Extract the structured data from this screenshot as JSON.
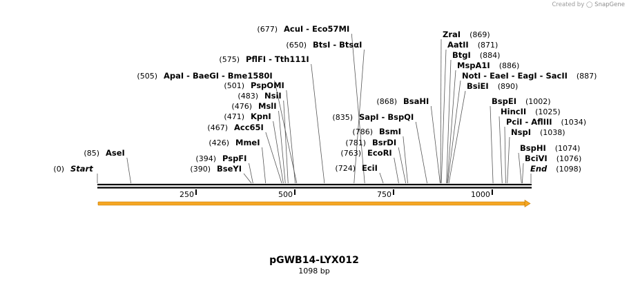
{
  "credit": {
    "prefix": "Created by",
    "brand": "SnapGene"
  },
  "plasmid": {
    "name": "pGWB14-LYX012",
    "length_label": "1098 bp",
    "length": 1098
  },
  "feature_color": "#f5a623",
  "ticks": [
    {
      "pos": 250,
      "label": "250"
    },
    {
      "pos": 500,
      "label": "500"
    },
    {
      "pos": 750,
      "label": "750"
    },
    {
      "pos": 1000,
      "label": "1000"
    }
  ],
  "sites": [
    {
      "pos_label": "(0)",
      "names": [
        "Start"
      ],
      "pos": 0,
      "italic": true
    },
    {
      "pos_label": "(85)",
      "names": [
        "AseI"
      ],
      "pos": 85
    },
    {
      "pos_label": "(390)",
      "names": [
        "BseYI"
      ],
      "pos": 390
    },
    {
      "pos_label": "(394)",
      "names": [
        "PspFI"
      ],
      "pos": 394
    },
    {
      "pos_label": "(426)",
      "names": [
        "MmeI"
      ],
      "pos": 426
    },
    {
      "pos_label": "(467)",
      "names": [
        "Acc65I"
      ],
      "pos": 467
    },
    {
      "pos_label": "(471)",
      "names": [
        "KpnI"
      ],
      "pos": 471
    },
    {
      "pos_label": "(476)",
      "names": [
        "MslI"
      ],
      "pos": 476
    },
    {
      "pos_label": "(483)",
      "names": [
        "NsiI"
      ],
      "pos": 483
    },
    {
      "pos_label": "(501)",
      "names": [
        "PspOMI"
      ],
      "pos": 501
    },
    {
      "pos_label": "(505)",
      "names": [
        "ApaI",
        "BaeGI",
        "Bme1580I"
      ],
      "pos": 505
    },
    {
      "pos_label": "(575)",
      "names": [
        "PflFI",
        "Tth111I"
      ],
      "pos": 575
    },
    {
      "pos_label": "(650)",
      "names": [
        "BtsI",
        "BtsαI"
      ],
      "pos": 650
    },
    {
      "pos_label": "(677)",
      "names": [
        "AcuI",
        "Eco57MI"
      ],
      "pos": 677
    },
    {
      "pos_label": "(724)",
      "names": [
        "EciI"
      ],
      "pos": 724
    },
    {
      "pos_label": "(763)",
      "names": [
        "EcoRI"
      ],
      "pos": 763
    },
    {
      "pos_label": "(781)",
      "names": [
        "BsrDI"
      ],
      "pos": 781
    },
    {
      "pos_label": "(786)",
      "names": [
        "BsmI"
      ],
      "pos": 786
    },
    {
      "pos_label": "(835)",
      "names": [
        "SapI",
        "BspQI"
      ],
      "pos": 835
    },
    {
      "pos_label": "(868)",
      "names": [
        "BsaHI"
      ],
      "pos": 868
    },
    {
      "pos_label": "(869)",
      "names": [
        "ZraI"
      ],
      "pos": 869
    },
    {
      "pos_label": "(871)",
      "names": [
        "AatII"
      ],
      "pos": 871
    },
    {
      "pos_label": "(884)",
      "names": [
        "BtgI"
      ],
      "pos": 884
    },
    {
      "pos_label": "(886)",
      "names": [
        "MspA1I"
      ],
      "pos": 886
    },
    {
      "pos_label": "(887)",
      "names": [
        "NotI",
        "EaeI",
        "EagI",
        "SacII"
      ],
      "pos": 887
    },
    {
      "pos_label": "(890)",
      "names": [
        "BsiEI"
      ],
      "pos": 890
    },
    {
      "pos_label": "(1002)",
      "names": [
        "BspEI"
      ],
      "pos": 1002
    },
    {
      "pos_label": "(1025)",
      "names": [
        "HincII"
      ],
      "pos": 1025
    },
    {
      "pos_label": "(1034)",
      "names": [
        "PciI",
        "AflIII"
      ],
      "pos": 1034
    },
    {
      "pos_label": "(1038)",
      "names": [
        "NspI"
      ],
      "pos": 1038
    },
    {
      "pos_label": "(1074)",
      "names": [
        "BspHI"
      ],
      "pos": 1074
    },
    {
      "pos_label": "(1076)",
      "names": [
        "BciVI"
      ],
      "pos": 1076
    },
    {
      "pos_label": "(1098)",
      "names": [
        "End"
      ],
      "pos": 1098,
      "italic": true
    }
  ]
}
